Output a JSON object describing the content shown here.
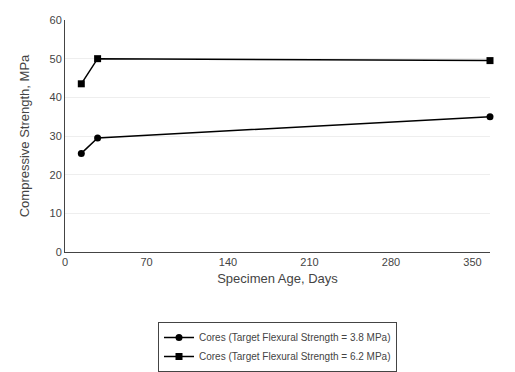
{
  "chart_data": {
    "type": "line",
    "x": [
      14,
      28,
      365
    ],
    "series": [
      {
        "name": "Cores (Target Flexural Strength = 3.8 MPa)",
        "color": "#000000",
        "marker": "circle",
        "line_style": "solid",
        "values": [
          25.5,
          29.5,
          35.0
        ]
      },
      {
        "name": "Cores (Target Flexural Strength = 6.2 MPa)",
        "color": "#000000",
        "marker": "square",
        "line_style": "solid",
        "values": [
          43.5,
          50.0,
          49.5
        ]
      }
    ],
    "xlabel": "Specimen Age, Days",
    "ylabel": "Compressive Strength, MPa",
    "xlim": [
      0,
      365
    ],
    "ylim": [
      0,
      60
    ],
    "xticks": [
      0,
      70,
      140,
      210,
      280,
      350
    ],
    "yticks": [
      0,
      10,
      20,
      30,
      40,
      50,
      60
    ],
    "grid": "y",
    "legend": "bottom"
  }
}
